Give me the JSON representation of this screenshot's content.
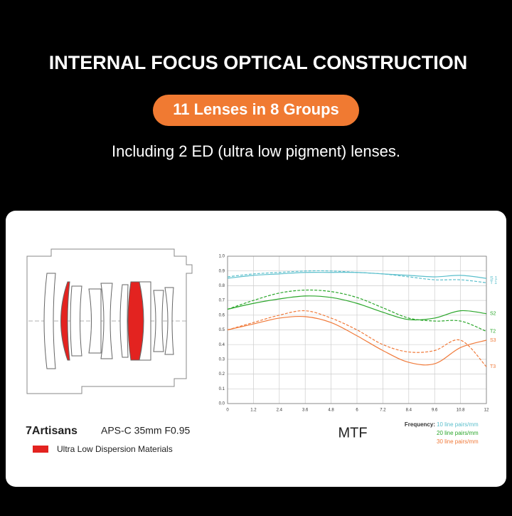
{
  "header": {
    "title": "INTERNAL FOCUS OPTICAL CONSTRUCTION",
    "badge": "11 Lenses in 8 Groups",
    "subtitle": "Including 2 ED (ultra low pigment) lenses."
  },
  "lens_info": {
    "brand": "7Artisans",
    "model": "APS-C 35mm F0.95",
    "legend": "Ultra Low Dispersion Materials"
  },
  "chart_data": {
    "type": "line",
    "title": "MTF",
    "x": [
      0,
      1.2,
      2.4,
      3.6,
      4.8,
      6,
      7.2,
      8.4,
      9.6,
      10.8,
      12
    ],
    "xlim": [
      0,
      12
    ],
    "xticks": [
      0,
      1.2,
      2.4,
      3.6,
      4.8,
      6,
      7.2,
      8.4,
      9.6,
      10.8,
      12
    ],
    "ylim": [
      0,
      1
    ],
    "yticks": [
      {
        "value": 0,
        "label": "0.0"
      },
      0.1,
      0.2,
      0.3,
      0.4,
      0.5,
      0.6,
      0.7,
      0.8,
      0.9,
      {
        "value": 1,
        "label": "1.0"
      }
    ],
    "grid": true,
    "series": [
      {
        "name": "S 1",
        "color": "#5bbfcc",
        "dashed": false,
        "values": [
          0.85,
          0.87,
          0.88,
          0.89,
          0.89,
          0.89,
          0.88,
          0.87,
          0.86,
          0.87,
          0.85
        ]
      },
      {
        "name": "T 1",
        "color": "#5bbfcc",
        "dashed": true,
        "values": [
          0.86,
          0.88,
          0.89,
          0.9,
          0.9,
          0.89,
          0.88,
          0.86,
          0.84,
          0.84,
          0.82
        ]
      },
      {
        "name": "S2",
        "color": "#2aa62a",
        "dashed": false,
        "values": [
          0.64,
          0.68,
          0.71,
          0.73,
          0.72,
          0.68,
          0.62,
          0.57,
          0.58,
          0.63,
          0.61
        ]
      },
      {
        "name": "T2",
        "color": "#2aa62a",
        "dashed": true,
        "values": [
          0.64,
          0.7,
          0.75,
          0.77,
          0.76,
          0.72,
          0.65,
          0.58,
          0.56,
          0.56,
          0.49
        ]
      },
      {
        "name": "S3",
        "color": "#f07a3a",
        "dashed": false,
        "values": [
          0.5,
          0.54,
          0.58,
          0.59,
          0.55,
          0.46,
          0.36,
          0.28,
          0.27,
          0.38,
          0.43
        ]
      },
      {
        "name": "T3",
        "color": "#f07a3a",
        "dashed": true,
        "values": [
          0.5,
          0.55,
          0.6,
          0.63,
          0.58,
          0.5,
          0.4,
          0.35,
          0.36,
          0.43,
          0.25
        ]
      }
    ],
    "frequency_label": "Frequency:",
    "frequencies": [
      {
        "label": "10 line pairs/mm",
        "color": "#5bbfcc"
      },
      {
        "label": "20 line pairs/mm",
        "color": "#2aa62a"
      },
      {
        "label": "30 line pairs/mm",
        "color": "#f07a3a"
      }
    ]
  }
}
